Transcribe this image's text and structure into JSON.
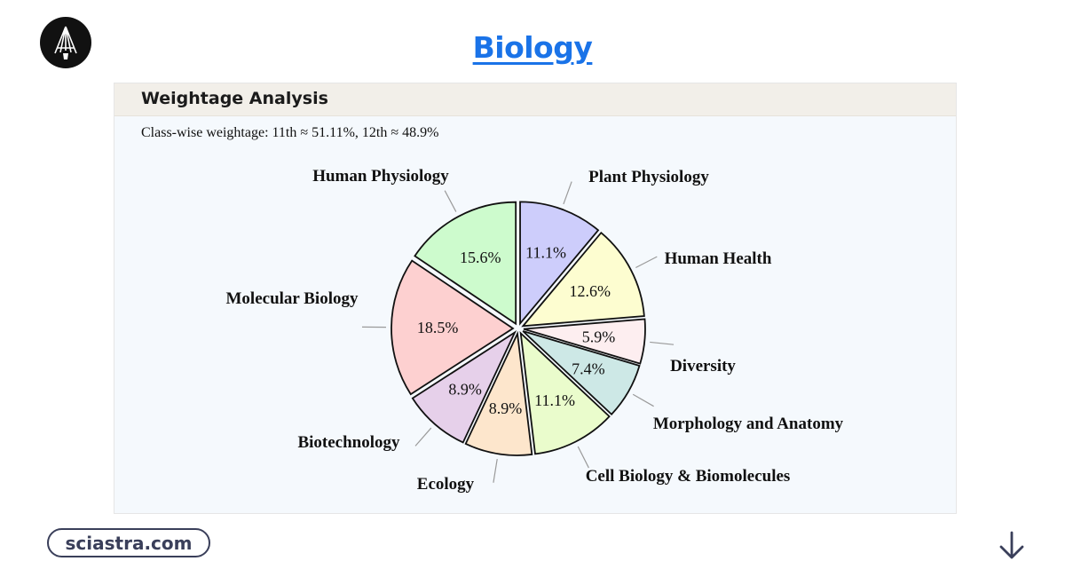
{
  "header": {
    "title": "Biology"
  },
  "panel": {
    "heading": "Weightage Analysis",
    "class_note": "Class-wise weightage: 11th ≈ 51.11%, 12th ≈ 48.9%"
  },
  "footer": {
    "site": "sciastra.com"
  },
  "chart_data": {
    "type": "pie",
    "title": "",
    "slices": [
      {
        "label": "Plant Physiology",
        "value": 11.1,
        "display": "11.1%",
        "color": "#cdcdfb"
      },
      {
        "label": "Human Health",
        "value": 12.6,
        "display": "12.6%",
        "color": "#fdfdd0"
      },
      {
        "label": "Diversity",
        "value": 5.9,
        "display": "5.9%",
        "color": "#fdeef0"
      },
      {
        "label": "Morphology and Anatomy",
        "value": 7.4,
        "display": "7.4%",
        "color": "#cde8e6"
      },
      {
        "label": "Cell Biology & Biomolecules",
        "value": 11.1,
        "display": "11.1%",
        "color": "#eafccc"
      },
      {
        "label": "Ecology",
        "value": 8.9,
        "display": "8.9%",
        "color": "#fde6cc"
      },
      {
        "label": "Biotechnology",
        "value": 8.9,
        "display": "8.9%",
        "color": "#e6d0ea"
      },
      {
        "label": "Molecular Biology",
        "value": 18.5,
        "display": "18.5%",
        "color": "#fdd0d0"
      },
      {
        "label": "Human Physiology",
        "value": 15.6,
        "display": "15.6%",
        "color": "#cdfbcd"
      }
    ],
    "start_angle_deg": 0,
    "direction": "clockwise",
    "exploded": true
  }
}
